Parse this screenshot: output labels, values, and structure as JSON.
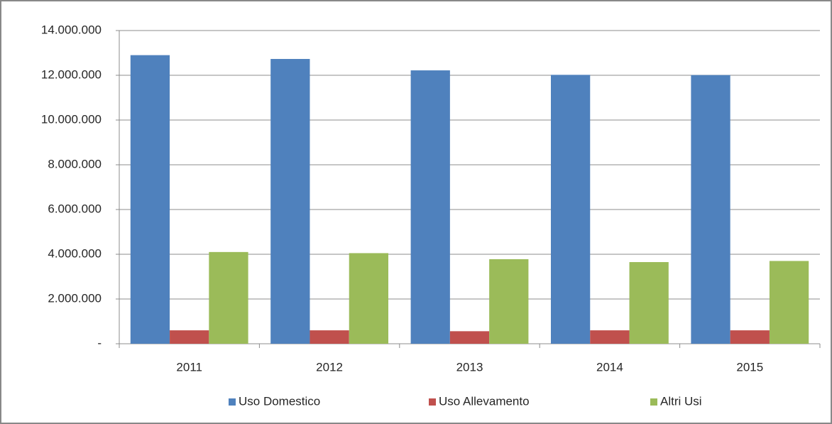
{
  "chart_data": {
    "type": "bar",
    "categories": [
      "2011",
      "2012",
      "2013",
      "2014",
      "2015"
    ],
    "series": [
      {
        "name": "Uso Domestico",
        "color": "#4f81bd",
        "values": [
          12900000,
          12730000,
          12220000,
          12020000,
          12010000
        ]
      },
      {
        "name": "Uso Allevamento",
        "color": "#c0504d",
        "values": [
          600000,
          600000,
          560000,
          600000,
          600000
        ]
      },
      {
        "name": "Altri Usi",
        "color": "#9bbb59",
        "values": [
          4100000,
          4050000,
          3780000,
          3650000,
          3700000
        ]
      }
    ],
    "ylim": [
      0,
      14000000
    ],
    "yticks": [
      {
        "value": 0,
        "label": "-"
      },
      {
        "value": 2000000,
        "label": "2.000.000"
      },
      {
        "value": 4000000,
        "label": "4.000.000"
      },
      {
        "value": 6000000,
        "label": "6.000.000"
      },
      {
        "value": 8000000,
        "label": "8.000.000"
      },
      {
        "value": 10000000,
        "label": "10.000.000"
      },
      {
        "value": 12000000,
        "label": "12.000.000"
      },
      {
        "value": 14000000,
        "label": "14.000.000"
      }
    ],
    "grid": true,
    "legend": "bottom"
  }
}
